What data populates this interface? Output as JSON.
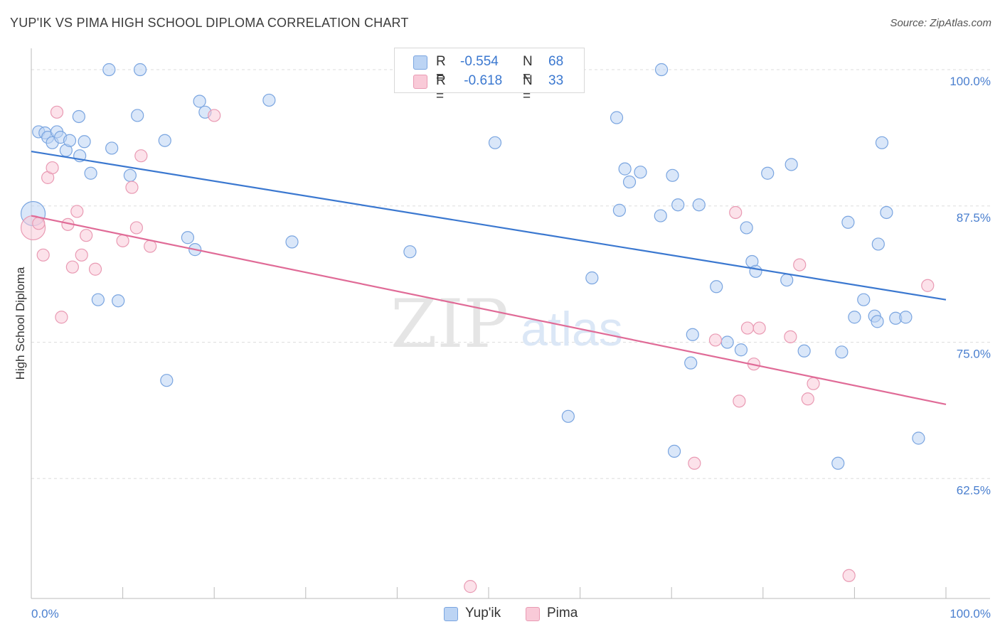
{
  "header": {
    "title": "YUP'IK VS PIMA HIGH SCHOOL DIPLOMA CORRELATION CHART",
    "source": "Source: ZipAtlas.com"
  },
  "watermark": {
    "zip": "ZIP",
    "atlas": "atlas"
  },
  "legend_stats": {
    "yupik": {
      "r_label": "R =",
      "r_value": "-0.554",
      "n_label": "N =",
      "n_value": "68"
    },
    "pima": {
      "r_label": "R =",
      "r_value": " -0.618",
      "n_label": "N =",
      "n_value": "33"
    }
  },
  "colors": {
    "yupik_fill": "#bcd4f4",
    "yupik_stroke": "#7aa5e0",
    "yupik_line": "#3b78d0",
    "pima_fill": "#f9cad8",
    "pima_stroke": "#e99ab3",
    "pima_line": "#e06b97",
    "grid": "#dedede",
    "axis_text": "#4a7fcf"
  },
  "chart_data": {
    "type": "scatter",
    "title": "YUP'IK VS PIMA HIGH SCHOOL DIPLOMA CORRELATION CHART",
    "xlabel": "",
    "ylabel": "High School Diploma",
    "xlim": [
      0,
      100
    ],
    "ylim": [
      51.5,
      101.5
    ],
    "x_tick_labels": [
      "0.0%",
      "100.0%"
    ],
    "y_ticks": [
      62.5,
      75.0,
      87.5,
      100.0
    ],
    "y_tick_labels": [
      "62.5%",
      "75.0%",
      "87.5%",
      "100.0%"
    ],
    "legend": {
      "position": "bottom-center",
      "entries": [
        "Yup'ik",
        "Pima"
      ]
    },
    "series": [
      {
        "name": "Yup'ik",
        "trend": {
          "x": [
            0,
            100
          ],
          "y": [
            92.5,
            78.9
          ]
        },
        "points": [
          [
            0.2,
            86.8,
            1
          ],
          [
            0.8,
            94.3,
            0
          ],
          [
            1.5,
            94.2,
            0
          ],
          [
            1.8,
            93.8,
            0
          ],
          [
            2.3,
            93.3,
            0
          ],
          [
            2.8,
            94.3,
            0
          ],
          [
            3.2,
            93.8,
            0
          ],
          [
            3.8,
            92.6,
            0
          ],
          [
            4.2,
            93.5,
            0
          ],
          [
            5.2,
            95.7,
            0
          ],
          [
            5.3,
            92.1,
            0
          ],
          [
            5.8,
            93.4,
            0
          ],
          [
            6.5,
            90.5,
            0
          ],
          [
            7.3,
            78.9,
            0
          ],
          [
            8.5,
            100,
            0
          ],
          [
            8.8,
            92.8,
            0
          ],
          [
            9.5,
            78.8,
            0
          ],
          [
            10.8,
            90.3,
            0
          ],
          [
            11.6,
            95.8,
            0
          ],
          [
            11.9,
            100,
            0
          ],
          [
            14.6,
            93.5,
            0
          ],
          [
            14.8,
            71.5,
            0
          ],
          [
            17.1,
            84.6,
            0
          ],
          [
            17.9,
            83.5,
            0
          ],
          [
            18.4,
            97.1,
            0
          ],
          [
            19.0,
            96.1,
            0
          ],
          [
            26.0,
            97.2,
            0
          ],
          [
            28.5,
            84.2,
            0
          ],
          [
            41.4,
            83.3,
            0
          ],
          [
            50.7,
            93.3,
            0
          ],
          [
            58.7,
            68.2,
            0
          ],
          [
            61.3,
            80.9,
            0
          ],
          [
            64.0,
            95.6,
            0
          ],
          [
            64.3,
            87.1,
            0
          ],
          [
            64.9,
            90.9,
            0
          ],
          [
            65.4,
            89.7,
            0
          ],
          [
            66.6,
            90.6,
            0
          ],
          [
            68.8,
            86.6,
            0
          ],
          [
            68.9,
            100,
            0
          ],
          [
            70.1,
            90.3,
            0
          ],
          [
            70.3,
            65.0,
            0
          ],
          [
            70.7,
            87.6,
            0
          ],
          [
            72.1,
            73.1,
            0
          ],
          [
            72.3,
            75.7,
            0
          ],
          [
            73.0,
            87.6,
            0
          ],
          [
            74.9,
            80.1,
            0
          ],
          [
            76.1,
            75.0,
            0
          ],
          [
            77.6,
            74.3,
            0
          ],
          [
            78.2,
            85.5,
            0
          ],
          [
            78.8,
            82.4,
            0
          ],
          [
            79.2,
            81.5,
            0
          ],
          [
            80.5,
            90.5,
            0
          ],
          [
            82.6,
            80.7,
            0
          ],
          [
            83.1,
            91.3,
            0
          ],
          [
            84.5,
            74.2,
            0
          ],
          [
            88.2,
            63.9,
            0
          ],
          [
            88.6,
            74.1,
            0
          ],
          [
            89.3,
            86.0,
            0
          ],
          [
            90.0,
            77.3,
            0
          ],
          [
            91.0,
            78.9,
            0
          ],
          [
            92.2,
            77.4,
            0
          ],
          [
            92.5,
            76.9,
            0
          ],
          [
            92.6,
            84.0,
            0
          ],
          [
            93.0,
            93.3,
            0
          ],
          [
            93.5,
            86.9,
            0
          ],
          [
            94.5,
            77.2,
            0
          ],
          [
            95.6,
            77.3,
            0
          ],
          [
            97.0,
            66.2,
            0
          ]
        ]
      },
      {
        "name": "Pima",
        "trend": {
          "x": [
            0,
            100
          ],
          "y": [
            86.6,
            69.3
          ]
        },
        "points": [
          [
            0.2,
            85.5,
            1
          ],
          [
            0.8,
            85.9,
            0
          ],
          [
            1.3,
            83.0,
            0
          ],
          [
            1.8,
            90.1,
            0
          ],
          [
            2.3,
            91.0,
            0
          ],
          [
            2.8,
            96.1,
            0
          ],
          [
            3.3,
            77.3,
            0
          ],
          [
            4.0,
            85.8,
            0
          ],
          [
            4.5,
            81.9,
            0
          ],
          [
            5.0,
            87.0,
            0
          ],
          [
            5.5,
            83.0,
            0
          ],
          [
            6.0,
            84.8,
            0
          ],
          [
            7.0,
            81.7,
            0
          ],
          [
            10.0,
            84.3,
            0
          ],
          [
            11.0,
            89.2,
            0
          ],
          [
            11.5,
            85.5,
            0
          ],
          [
            12.0,
            92.1,
            0
          ],
          [
            13.0,
            83.8,
            0
          ],
          [
            20.0,
            95.8,
            0
          ],
          [
            48.0,
            52.6,
            0
          ],
          [
            72.5,
            63.9,
            0
          ],
          [
            74.8,
            75.2,
            0
          ],
          [
            77.0,
            86.9,
            0
          ],
          [
            77.4,
            69.6,
            0
          ],
          [
            78.3,
            76.3,
            0
          ],
          [
            79.0,
            73.0,
            0
          ],
          [
            79.6,
            76.3,
            0
          ],
          [
            83.0,
            75.5,
            0
          ],
          [
            84.0,
            82.1,
            0
          ],
          [
            84.9,
            69.8,
            0
          ],
          [
            85.5,
            71.2,
            0
          ],
          [
            89.4,
            53.6,
            0
          ],
          [
            98.0,
            80.2,
            0
          ]
        ]
      }
    ]
  },
  "bottom_legend": {
    "yupik": "Yup'ik",
    "pima": "Pima"
  }
}
